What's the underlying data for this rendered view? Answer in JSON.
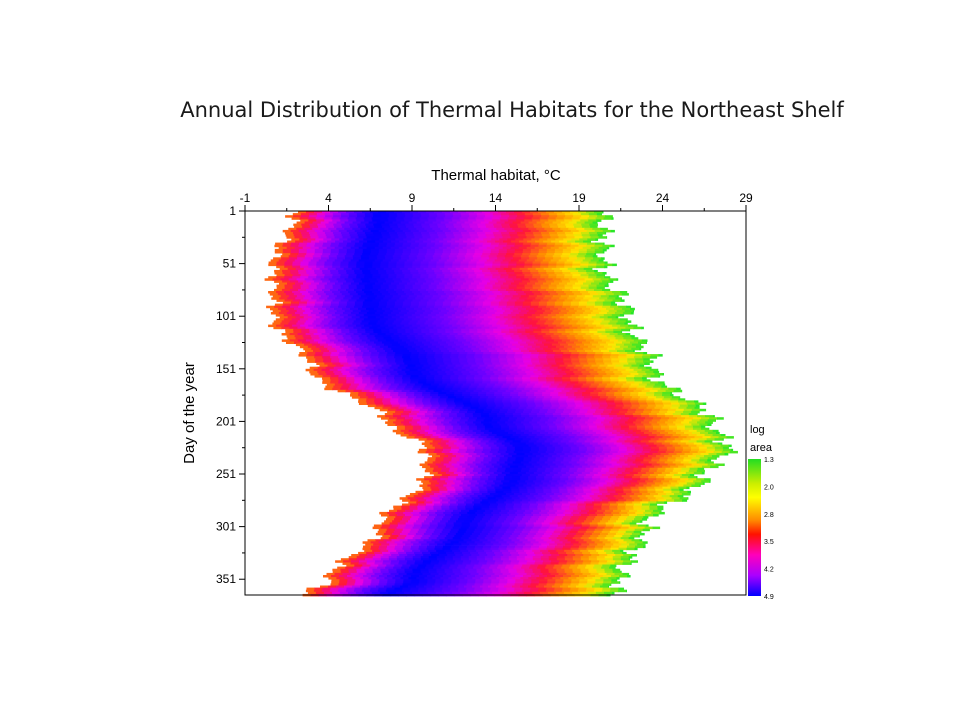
{
  "slide": {
    "title": "Annual Distribution of Thermal Habitats for the Northeast Shelf"
  },
  "chart_data": {
    "type": "heatmap",
    "title": "Annual Distribution of Thermal Habitats for the Northeast Shelf",
    "xlabel": "Thermal habitat, °C",
    "ylabel": "Day of the year",
    "x_ticks": [
      -1,
      4,
      9,
      14,
      19,
      24,
      29
    ],
    "y_ticks": [
      1,
      51,
      101,
      151,
      201,
      251,
      301,
      351
    ],
    "xlim": [
      -1,
      29
    ],
    "ylim": [
      1,
      366
    ],
    "x_axis_position": "top",
    "colorbar": {
      "title_lines": [
        "log",
        "area"
      ],
      "ticks": [
        "1.3",
        "2.0",
        "2.8",
        "3.5",
        "4.2",
        "4.9"
      ],
      "colors": [
        "#22dd22",
        "#ffff00",
        "#ff2200",
        "#ff00cc",
        "#9900ff",
        "#0000ff"
      ]
    },
    "profile": {
      "description_days": [
        1,
        51,
        101,
        151,
        201,
        226,
        251,
        301,
        351,
        366
      ],
      "min_temp": [
        2.0,
        0.7,
        0.7,
        3.0,
        7.5,
        9.8,
        9.8,
        7.0,
        4.0,
        2.5
      ],
      "core_temp": [
        7.0,
        6.2,
        6.5,
        9.0,
        13.5,
        15.5,
        15.0,
        12.0,
        9.0,
        7.5
      ],
      "max_temp": [
        20.5,
        20.5,
        22.0,
        23.5,
        27.0,
        28.0,
        26.5,
        23.0,
        21.5,
        21.0
      ]
    },
    "grid": false,
    "legend": "right"
  }
}
